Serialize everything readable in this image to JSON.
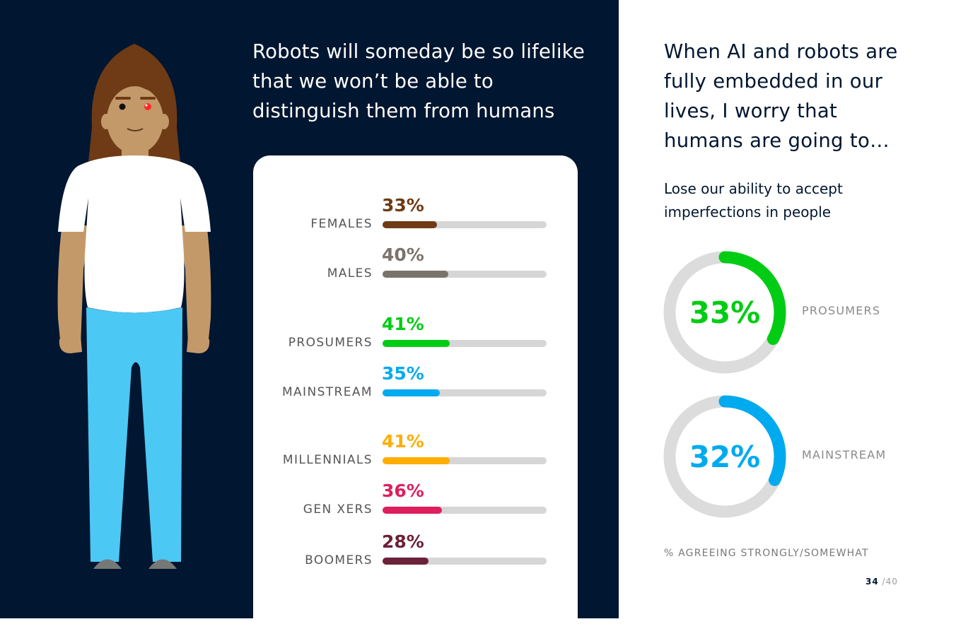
{
  "left": {
    "title": "Robots will someday be so lifelike that we won’t be able to distinguish them from humans"
  },
  "right": {
    "title": "When AI and robots are fully embedded in our lives, I worry that humans are going to…",
    "subtitle": "Lose our ability to accept imperfections in people",
    "footnote": "% AGREEING STRONGLY/SOMEWHAT"
  },
  "page": {
    "current": "34",
    "total": "/40"
  },
  "chart_data": [
    {
      "type": "bar",
      "categories": [
        "FEMALES",
        "MALES",
        "PROSUMERS",
        "MAINSTREAM",
        "MILLENNIALS",
        "GEN XERS",
        "BOOMERS"
      ],
      "values": [
        33,
        40,
        41,
        35,
        41,
        36,
        28
      ],
      "value_labels": [
        "33%",
        "40%",
        "41%",
        "35%",
        "41%",
        "36%",
        "28%"
      ],
      "colors": [
        "#6e3b16",
        "#7a736c",
        "#00cc14",
        "#00aaee",
        "#ffad00",
        "#dd1f5d",
        "#6b2138"
      ],
      "ylim": [
        0,
        100
      ],
      "orientation": "horizontal"
    },
    {
      "type": "pie",
      "style": "donut",
      "labels": [
        "PROSUMERS",
        "MAINSTREAM"
      ],
      "values": [
        33,
        32
      ],
      "value_labels": [
        "33%",
        "32%"
      ],
      "colors": [
        "#00cc14",
        "#00aaee"
      ],
      "track_color": "#dcdcdc"
    }
  ]
}
